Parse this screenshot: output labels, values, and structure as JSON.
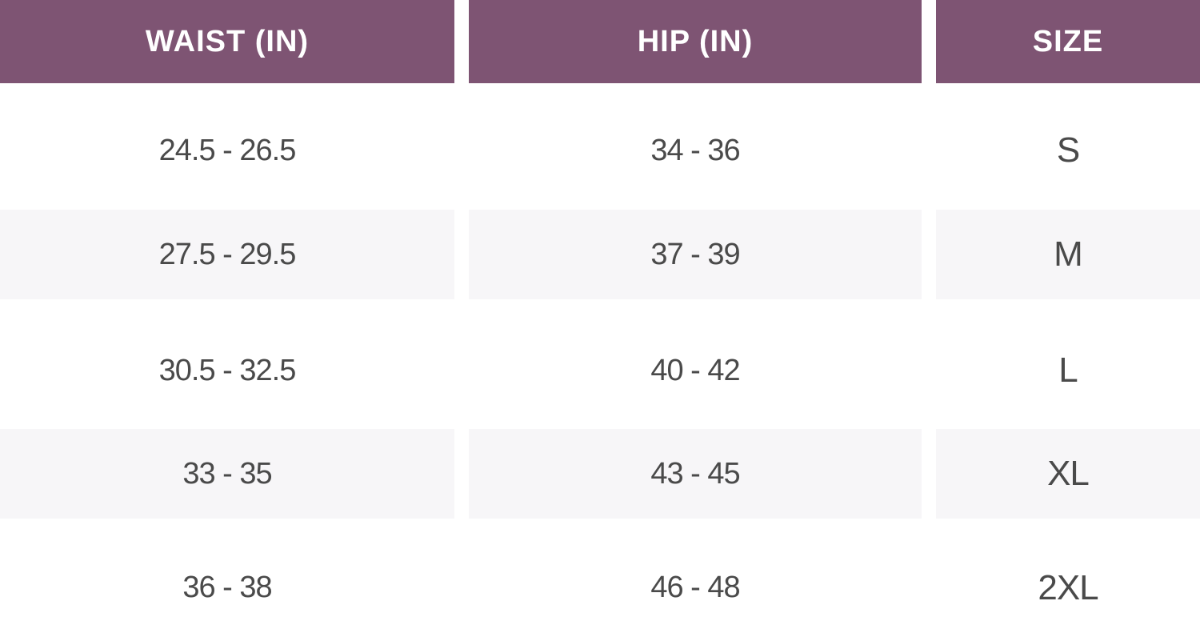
{
  "colors": {
    "header_bg": "#7e5473",
    "header_text": "#ffffff",
    "stripe_bg": "#f7f6f8",
    "row_bg": "#ffffff",
    "cell_text": "#4a4a4a"
  },
  "table": {
    "headers": [
      "WAIST (IN)",
      "HIP (IN)",
      "SIZE"
    ],
    "rows": [
      [
        "24.5 - 26.5",
        "34 - 36",
        "S"
      ],
      [
        "27.5 - 29.5",
        "37 - 39",
        "M"
      ],
      [
        "30.5 - 32.5",
        "40 - 42",
        "L"
      ],
      [
        "33 - 35",
        "43 - 45",
        "XL"
      ],
      [
        "36 - 38",
        "46 - 48",
        "2XL"
      ]
    ]
  }
}
